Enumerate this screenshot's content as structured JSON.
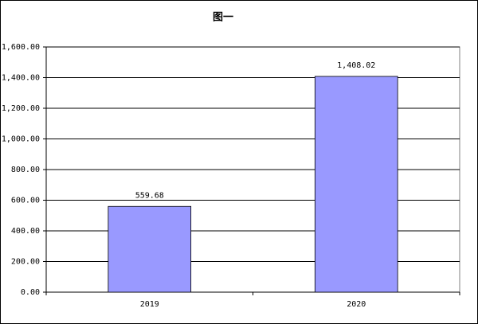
{
  "chart_data": {
    "type": "bar",
    "title": "图一",
    "categories": [
      "2019",
      "2020"
    ],
    "values": [
      559.68,
      1408.02
    ],
    "value_labels": [
      "559.68",
      "1,408.02"
    ],
    "color": "#9999ff",
    "ylim": [
      0,
      1600
    ],
    "yticks": [
      {
        "value": 0,
        "label": "0.00"
      },
      {
        "value": 200,
        "label": "200.00"
      },
      {
        "value": 400,
        "label": "400.00"
      },
      {
        "value": 600,
        "label": "600.00"
      },
      {
        "value": 800,
        "label": "800.00"
      },
      {
        "value": 1000,
        "label": "1,000.00"
      },
      {
        "value": 1200,
        "label": "1,200.00"
      },
      {
        "value": 1400,
        "label": "1,400.00"
      },
      {
        "value": 1600,
        "label": "1,600.00"
      }
    ],
    "grid": true
  }
}
